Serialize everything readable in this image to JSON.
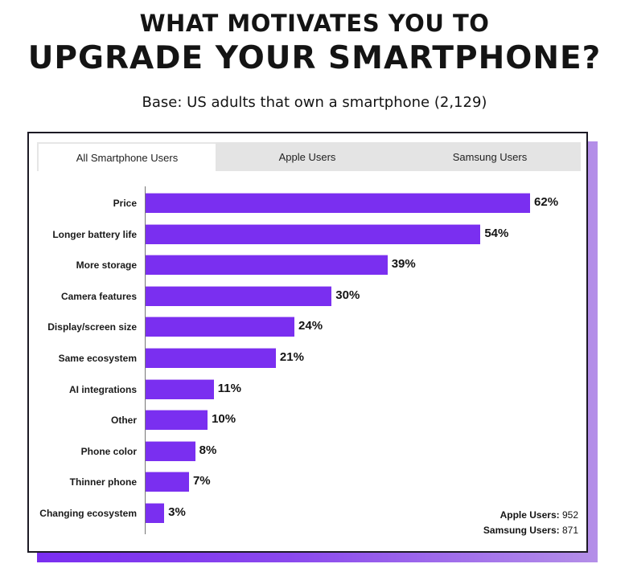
{
  "header": {
    "title_line1": "WHAT MOTIVATES YOU TO",
    "title_line2": "UPGRADE YOUR SMARTPHONE?",
    "subtitle": "Base: US adults that own a smartphone (2,129)"
  },
  "tabs": [
    {
      "label": "All Smartphone Users",
      "active": true
    },
    {
      "label": "Apple Users",
      "active": false
    },
    {
      "label": "Samsung Users",
      "active": false
    }
  ],
  "colors": {
    "bar": "#7a2ff0",
    "shadow_start": "#7a2ef0",
    "shadow_end": "#b48fe8",
    "tab_inactive": "#e4e4e4",
    "border": "#1c1a25"
  },
  "legend": {
    "apple_label": "Apple Users:",
    "apple_value": "952",
    "samsung_label": "Samsung Users:",
    "samsung_value": "871"
  },
  "chart_data": {
    "type": "bar",
    "orientation": "horizontal",
    "title": "WHAT MOTIVATES YOU TO UPGRADE YOUR SMARTPHONE?",
    "subtitle": "Base: US adults that own a smartphone (2,129)",
    "categories": [
      "Price",
      "Longer battery life",
      "More storage",
      "Camera features",
      "Display/screen size",
      "Same ecosystem",
      "AI integrations",
      "Other",
      "Phone color",
      "Thinner phone",
      "Changing ecosystem"
    ],
    "values": [
      62,
      54,
      39,
      30,
      24,
      21,
      11,
      10,
      8,
      7,
      3
    ],
    "value_labels": [
      "62%",
      "54%",
      "39%",
      "30%",
      "24%",
      "21%",
      "11%",
      "10%",
      "8%",
      "7%",
      "3%"
    ],
    "unit": "%",
    "xlabel": "",
    "ylabel": "",
    "grid": false,
    "selected_tab": "All Smartphone Users",
    "notes": [
      "Apple Users: 952",
      "Samsung Users: 871"
    ]
  }
}
